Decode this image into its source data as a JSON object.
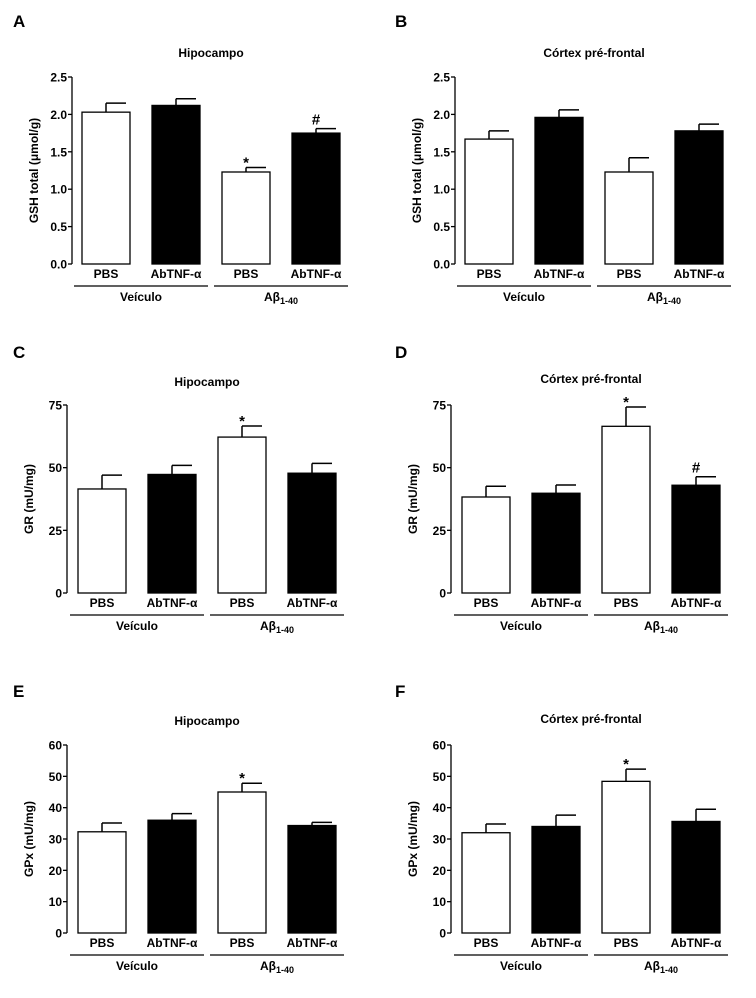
{
  "chart_data": [
    {
      "panel": "A",
      "type": "bar",
      "title": "Hipocampo",
      "ylabel": "GSH total (μmol/g)",
      "ylim": [
        0,
        2.5
      ],
      "yticks": [
        "0.0",
        "0.5",
        "1.0",
        "1.5",
        "2.0",
        "2.5"
      ],
      "ytick_values": [
        0,
        0.5,
        1.0,
        1.5,
        2.0,
        2.5
      ],
      "categories": [
        "PBS",
        "AbTNF-α",
        "PBS",
        "AbTNF-α"
      ],
      "fills": [
        "#ffffff",
        "#000000",
        "#ffffff",
        "#000000"
      ],
      "values": [
        2.03,
        2.12,
        1.23,
        1.75
      ],
      "errors": [
        0.12,
        0.09,
        0.06,
        0.06
      ],
      "annotations": [
        "",
        "",
        "*",
        "#"
      ],
      "groups": [
        {
          "label": "Veículo",
          "sub": ""
        },
        {
          "label": "Aβ",
          "sub": "1-40"
        }
      ]
    },
    {
      "panel": "B",
      "type": "bar",
      "title": "Córtex pré-frontal",
      "ylabel": "GSH total (μmol/g)",
      "ylim": [
        0,
        2.5
      ],
      "yticks": [
        "0.0",
        "0.5",
        "1.0",
        "1.5",
        "2.0",
        "2.5"
      ],
      "ytick_values": [
        0,
        0.5,
        1.0,
        1.5,
        2.0,
        2.5
      ],
      "categories": [
        "PBS",
        "AbTNF-α",
        "PBS",
        "AbTNF-α"
      ],
      "fills": [
        "#ffffff",
        "#000000",
        "#ffffff",
        "#000000"
      ],
      "values": [
        1.67,
        1.96,
        1.23,
        1.78
      ],
      "errors": [
        0.11,
        0.1,
        0.19,
        0.09
      ],
      "annotations": [
        "",
        "",
        "",
        ""
      ],
      "groups": [
        {
          "label": "Veículo",
          "sub": ""
        },
        {
          "label": "Aβ",
          "sub": "1-40"
        }
      ]
    },
    {
      "panel": "C",
      "type": "bar",
      "title": "Hipocampo",
      "ylabel": "GR (mU/mg)",
      "ylim": [
        0,
        75
      ],
      "yticks": [
        "0",
        "25",
        "50",
        "75"
      ],
      "ytick_values": [
        0,
        25,
        50,
        75
      ],
      "categories": [
        "PBS",
        "AbTNF-α",
        "PBS",
        "AbTNF-α"
      ],
      "fills": [
        "#ffffff",
        "#000000",
        "#ffffff",
        "#000000"
      ],
      "values": [
        41.5,
        47.3,
        62.2,
        47.8
      ],
      "errors": [
        5.5,
        3.6,
        4.4,
        3.9
      ],
      "annotations": [
        "",
        "",
        "*",
        ""
      ],
      "groups": [
        {
          "label": "Veículo",
          "sub": ""
        },
        {
          "label": "Aβ",
          "sub": "1-40"
        }
      ]
    },
    {
      "panel": "D",
      "type": "bar",
      "title": "Córtex pré-frontal",
      "ylabel": "GR (mU/mg)",
      "ylim": [
        0,
        75
      ],
      "yticks": [
        "0",
        "25",
        "50",
        "75"
      ],
      "ytick_values": [
        0,
        25,
        50,
        75
      ],
      "categories": [
        "PBS",
        "AbTNF-α",
        "PBS",
        "AbTNF-α"
      ],
      "fills": [
        "#ffffff",
        "#000000",
        "#ffffff",
        "#000000"
      ],
      "values": [
        38.3,
        39.8,
        66.5,
        43.0
      ],
      "errors": [
        4.3,
        3.3,
        7.7,
        3.4
      ],
      "annotations": [
        "",
        "",
        "*",
        "#"
      ],
      "groups": [
        {
          "label": "Veículo",
          "sub": ""
        },
        {
          "label": "Aβ",
          "sub": "1-40"
        }
      ]
    },
    {
      "panel": "E",
      "type": "bar",
      "title": "Hipocampo",
      "ylabel": "GPx (mU/mg)",
      "ylim": [
        0,
        60
      ],
      "yticks": [
        "0",
        "10",
        "20",
        "30",
        "40",
        "50",
        "60"
      ],
      "ytick_values": [
        0,
        10,
        20,
        30,
        40,
        50,
        60
      ],
      "categories": [
        "PBS",
        "AbTNF-α",
        "PBS",
        "AbTNF-α"
      ],
      "fills": [
        "#ffffff",
        "#000000",
        "#ffffff",
        "#000000"
      ],
      "values": [
        32.3,
        36.0,
        45.0,
        34.3
      ],
      "errors": [
        2.8,
        2.1,
        2.8,
        1.0
      ],
      "annotations": [
        "",
        "",
        "*",
        ""
      ],
      "groups": [
        {
          "label": "Veículo",
          "sub": ""
        },
        {
          "label": "Aβ",
          "sub": "1-40"
        }
      ]
    },
    {
      "panel": "F",
      "type": "bar",
      "title": "Córtex pré-frontal",
      "ylabel": "GPx (mU/mg)",
      "ylim": [
        0,
        60
      ],
      "yticks": [
        "0",
        "10",
        "20",
        "30",
        "40",
        "50",
        "60"
      ],
      "ytick_values": [
        0,
        10,
        20,
        30,
        40,
        50,
        60
      ],
      "categories": [
        "PBS",
        "AbTNF-α",
        "PBS",
        "AbTNF-α"
      ],
      "fills": [
        "#ffffff",
        "#000000",
        "#ffffff",
        "#000000"
      ],
      "values": [
        32.0,
        34.0,
        48.4,
        35.6
      ],
      "errors": [
        2.8,
        3.6,
        3.9,
        3.9
      ],
      "annotations": [
        "",
        "",
        "*",
        ""
      ],
      "groups": [
        {
          "label": "Veículo",
          "sub": ""
        },
        {
          "label": "Aβ",
          "sub": "1-40"
        }
      ]
    }
  ]
}
